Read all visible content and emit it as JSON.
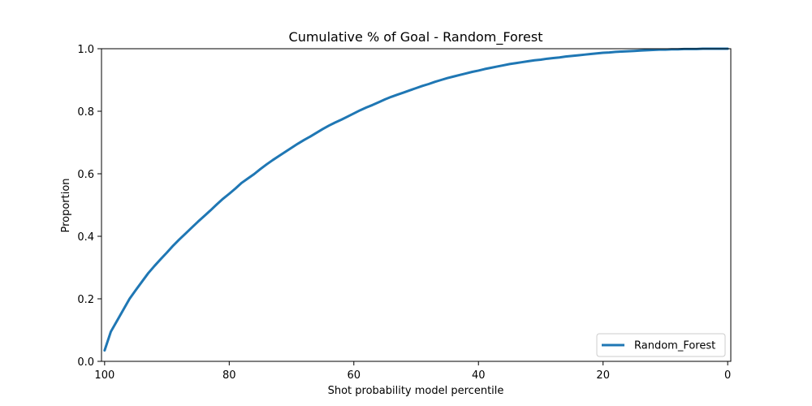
{
  "chart_data": {
    "type": "line",
    "title": "Cumulative % of Goal - Random_Forest",
    "xlabel": "Shot probability model percentile",
    "ylabel": "Proportion",
    "xlim": [
      100.5,
      -0.5
    ],
    "ylim": [
      0.0,
      1.0
    ],
    "x_inverted": true,
    "grid": false,
    "legend_position": "lower right",
    "xticks": [
      {
        "value": 100,
        "label": "100"
      },
      {
        "value": 80,
        "label": "80"
      },
      {
        "value": 60,
        "label": "60"
      },
      {
        "value": 40,
        "label": "40"
      },
      {
        "value": 20,
        "label": "20"
      },
      {
        "value": 0,
        "label": "0"
      }
    ],
    "yticks": [
      {
        "value": 0.0,
        "label": "0.0"
      },
      {
        "value": 0.2,
        "label": "0.2"
      },
      {
        "value": 0.4,
        "label": "0.4"
      },
      {
        "value": 0.6,
        "label": "0.6"
      },
      {
        "value": 0.8,
        "label": "0.8"
      },
      {
        "value": 1.0,
        "label": "1.0"
      }
    ],
    "series": [
      {
        "name": "Random_Forest",
        "color": "#1f77b4",
        "x": [
          100,
          99,
          98,
          97,
          96,
          95,
          94,
          93,
          92,
          91,
          90,
          89,
          88,
          87,
          86,
          85,
          84,
          83,
          82,
          81,
          80,
          79,
          78,
          77,
          76,
          75,
          74,
          73,
          72,
          71,
          70,
          69,
          68,
          67,
          66,
          65,
          64,
          63,
          62,
          61,
          60,
          59,
          58,
          57,
          56,
          55,
          54,
          53,
          52,
          51,
          50,
          49,
          48,
          47,
          46,
          45,
          44,
          43,
          42,
          41,
          40,
          39,
          38,
          37,
          36,
          35,
          34,
          33,
          32,
          31,
          30,
          29,
          28,
          27,
          26,
          25,
          24,
          23,
          22,
          21,
          20,
          19,
          18,
          17,
          16,
          15,
          14,
          13,
          12,
          11,
          10,
          9,
          8,
          7,
          6,
          5,
          4,
          3,
          2,
          1,
          0
        ],
        "y": [
          0.035,
          0.095,
          0.13,
          0.165,
          0.2,
          0.228,
          0.255,
          0.282,
          0.305,
          0.327,
          0.348,
          0.37,
          0.39,
          0.409,
          0.428,
          0.447,
          0.465,
          0.483,
          0.502,
          0.52,
          0.536,
          0.553,
          0.571,
          0.585,
          0.599,
          0.615,
          0.63,
          0.644,
          0.657,
          0.67,
          0.683,
          0.696,
          0.708,
          0.719,
          0.731,
          0.743,
          0.754,
          0.764,
          0.773,
          0.783,
          0.793,
          0.803,
          0.812,
          0.82,
          0.829,
          0.838,
          0.846,
          0.853,
          0.86,
          0.867,
          0.874,
          0.881,
          0.887,
          0.894,
          0.9,
          0.906,
          0.911,
          0.916,
          0.921,
          0.926,
          0.93,
          0.935,
          0.939,
          0.943,
          0.947,
          0.951,
          0.954,
          0.957,
          0.96,
          0.963,
          0.965,
          0.968,
          0.97,
          0.972,
          0.975,
          0.977,
          0.979,
          0.981,
          0.983,
          0.985,
          0.987,
          0.988,
          0.99,
          0.991,
          0.992,
          0.993,
          0.994,
          0.995,
          0.996,
          0.997,
          0.997,
          0.998,
          0.998,
          0.999,
          0.999,
          0.999,
          1.0,
          1.0,
          1.0,
          1.0,
          1.0
        ]
      }
    ]
  }
}
